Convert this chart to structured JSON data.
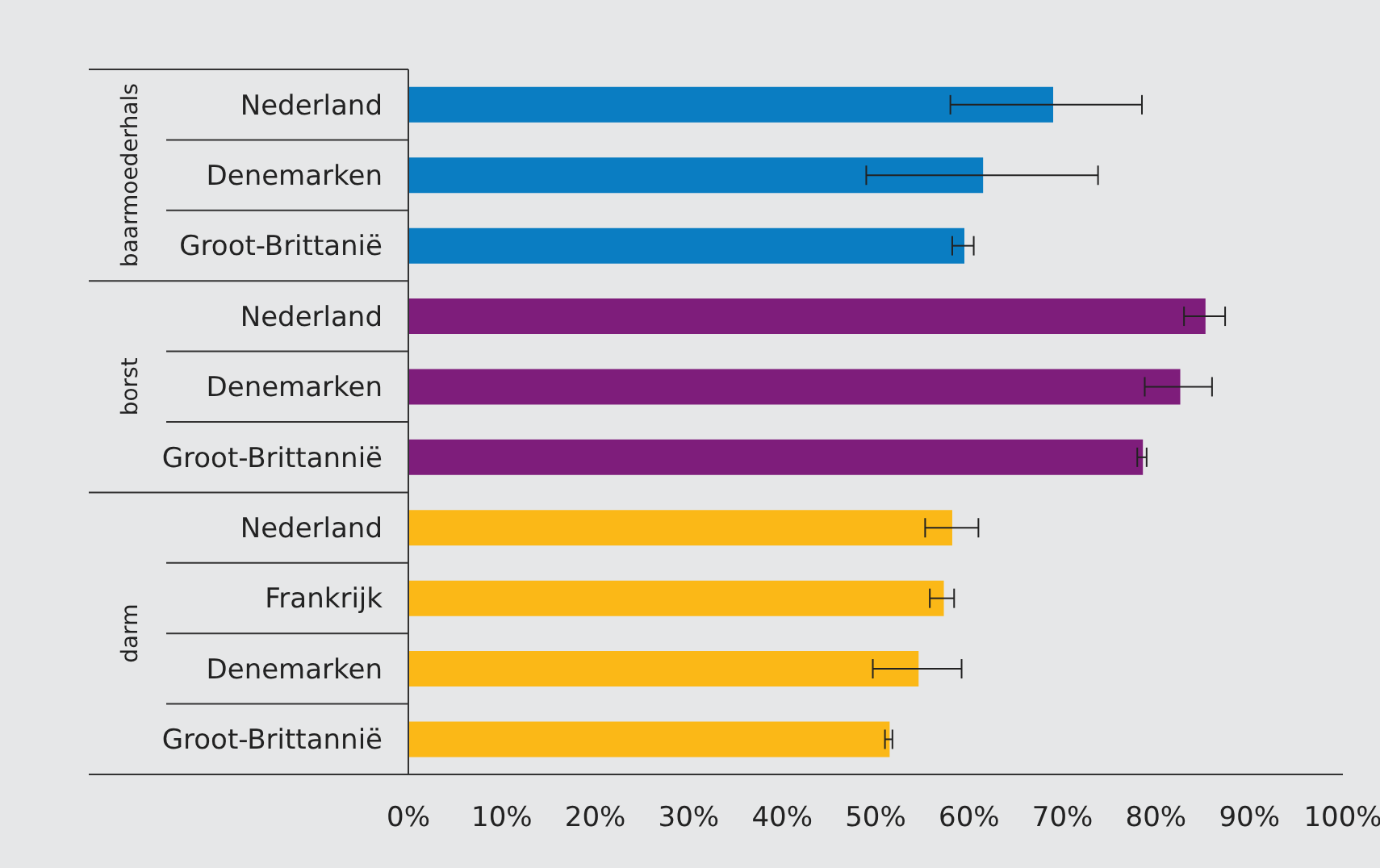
{
  "chart_data": {
    "type": "bar",
    "orientation": "horizontal",
    "categories": [
      "Nederland",
      "Denemarken",
      "Groot-Brittanië",
      "Nederland",
      "Denemarken",
      "Groot-Brittannië",
      "Nederland",
      "Frankrijk",
      "Denemarken",
      "Groot-Brittannië"
    ],
    "values": [
      69,
      61.5,
      59.5,
      85.3,
      82.6,
      78.6,
      58.2,
      57.3,
      54.6,
      51.5
    ],
    "colors": [
      "#0a7dc2",
      "#0a7dc2",
      "#0a7dc2",
      "#7e1d7b",
      "#7e1d7b",
      "#7e1d7b",
      "#fbb817",
      "#fbb817",
      "#fbb817",
      "#fbb817"
    ],
    "errors": [
      [
        58,
        78.5
      ],
      [
        49,
        73.8
      ],
      [
        58.2,
        60.5
      ],
      [
        83,
        87.4
      ],
      [
        78.8,
        86
      ],
      [
        78,
        79
      ],
      [
        55.3,
        61
      ],
      [
        55.8,
        58.4
      ],
      [
        49.7,
        59.2
      ],
      [
        51,
        51.8
      ]
    ],
    "annotations": [
      "baarmoederhals",
      "borst",
      "darm"
    ],
    "xlim": [
      0,
      100
    ],
    "xticks": [
      {
        "value": 0,
        "label": "0%"
      },
      {
        "value": 10,
        "label": "10%"
      },
      {
        "value": 20,
        "label": "20%"
      },
      {
        "value": 30,
        "label": "30%"
      },
      {
        "value": 40,
        "label": "40%"
      },
      {
        "value": 50,
        "label": "50%"
      },
      {
        "value": 60,
        "label": "60%"
      },
      {
        "value": 70,
        "label": "70%"
      },
      {
        "value": 80,
        "label": "80%"
      },
      {
        "value": 90,
        "label": "90%"
      },
      {
        "value": 100,
        "label": "100%"
      }
    ],
    "grid": false,
    "legend": false
  }
}
